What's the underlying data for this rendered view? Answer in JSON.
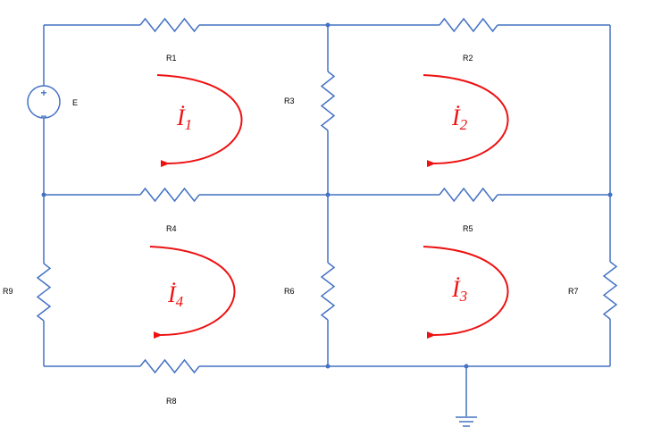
{
  "colors": {
    "wire": "#4472c4",
    "loop": "#ee1111"
  },
  "source": {
    "label": "E",
    "plus": "+",
    "minus": "−"
  },
  "resistors": [
    {
      "id": "r1",
      "label": "R1"
    },
    {
      "id": "r2",
      "label": "R2"
    },
    {
      "id": "r3",
      "label": "R3"
    },
    {
      "id": "r4",
      "label": "R4"
    },
    {
      "id": "r5",
      "label": "R5"
    },
    {
      "id": "r6",
      "label": "R6"
    },
    {
      "id": "r7",
      "label": "R7"
    },
    {
      "id": "r8",
      "label": "R8"
    },
    {
      "id": "r9",
      "label": "R9"
    }
  ],
  "loops": [
    {
      "id": "loop1",
      "symbol": "İ",
      "sub": "1"
    },
    {
      "id": "loop2",
      "symbol": "İ",
      "sub": "2"
    },
    {
      "id": "loop3",
      "symbol": "İ",
      "sub": "3"
    },
    {
      "id": "loop4",
      "symbol": "İ",
      "sub": "4"
    }
  ]
}
